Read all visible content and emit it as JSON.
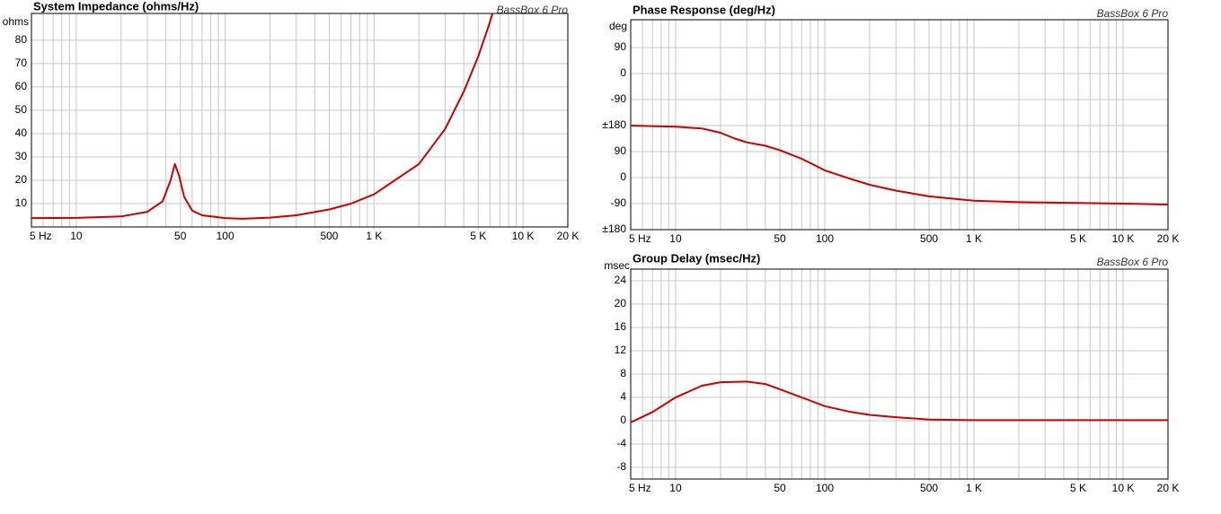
{
  "chart_data": [
    {
      "type": "line",
      "title": "System Impedance (ohms/Hz)",
      "brand": "BassBox 6 Pro",
      "ylabel": "ohms",
      "x": [
        5,
        10,
        20,
        30,
        38,
        43,
        46,
        49,
        53,
        60,
        70,
        100,
        130,
        200,
        300,
        500,
        700,
        1000,
        2000,
        3000,
        4000,
        5000,
        5800,
        6250
      ],
      "series": [
        {
          "name": "Impedance",
          "color": "#cc0000",
          "values": [
            3.8,
            3.9,
            4.5,
            6.5,
            11,
            20,
            27,
            22,
            13,
            7,
            5,
            3.8,
            3.5,
            4,
            5,
            7.5,
            10,
            14,
            27,
            42,
            58,
            73,
            85,
            91.5
          ]
        }
      ],
      "xlim": [
        5,
        20000
      ],
      "log_x": true,
      "ylim": [
        0,
        91.5
      ],
      "yticks": [
        10,
        20,
        30,
        40,
        50,
        60,
        70,
        80
      ],
      "xticks": [
        {
          "value": 5,
          "label": "5 Hz"
        },
        10,
        50,
        100,
        500,
        {
          "value": 1000,
          "label": "1 K"
        },
        {
          "value": 5000,
          "label": "5 K"
        },
        {
          "value": 10000,
          "label": "10 K"
        },
        {
          "value": 20000,
          "label": "20 K"
        }
      ],
      "xgrid": [
        5,
        6,
        7,
        8,
        9,
        10,
        20,
        30,
        40,
        50,
        60,
        70,
        80,
        90,
        100,
        200,
        300,
        400,
        500,
        600,
        700,
        800,
        900,
        1000,
        2000,
        3000,
        4000,
        5000,
        6000,
        7000,
        8000,
        9000,
        10000,
        20000
      ],
      "grid": true
    },
    {
      "type": "line",
      "title": "Phase Response (deg/Hz)",
      "brand": "BassBox 6 Pro",
      "ylabel": "deg",
      "x": [
        5,
        10,
        15,
        20,
        25,
        30,
        40,
        50,
        70,
        100,
        150,
        200,
        300,
        500,
        1000,
        2000,
        5000,
        10000,
        20000
      ],
      "series": [
        {
          "name": "Phase",
          "color": "#cc0000",
          "values": [
            180,
            176,
            170,
            155,
            135,
            122,
            110,
            95,
            65,
            25,
            -5,
            -25,
            -45,
            -65,
            -80,
            -85,
            -88,
            -90,
            -93
          ]
        }
      ],
      "xlim": [
        5,
        20000
      ],
      "log_x": true,
      "ylim": [
        -180,
        546
      ],
      "yticks": [
        {
          "value": -180,
          "label": "±180"
        },
        -90,
        0,
        90,
        {
          "value": 180,
          "label": "±180"
        },
        {
          "value": 270,
          "label": "-90"
        },
        {
          "value": 360,
          "label": "0"
        },
        {
          "value": 450,
          "label": "90"
        }
      ],
      "xticks": [
        {
          "value": 5,
          "label": "5 Hz"
        },
        10,
        50,
        100,
        500,
        {
          "value": 1000,
          "label": "1 K"
        },
        {
          "value": 5000,
          "label": "5 K"
        },
        {
          "value": 10000,
          "label": "10 K"
        },
        {
          "value": 20000,
          "label": "20 K"
        }
      ],
      "xgrid": [
        5,
        6,
        7,
        8,
        9,
        10,
        20,
        30,
        40,
        50,
        60,
        70,
        80,
        90,
        100,
        200,
        300,
        400,
        500,
        600,
        700,
        800,
        900,
        1000,
        2000,
        3000,
        4000,
        5000,
        6000,
        7000,
        8000,
        9000,
        10000,
        20000
      ],
      "grid": true
    },
    {
      "type": "line",
      "title": "Group Delay (msec/Hz)",
      "brand": "BassBox 6 Pro",
      "ylabel": "msec",
      "x": [
        5,
        7,
        10,
        15,
        20,
        30,
        40,
        50,
        70,
        100,
        150,
        200,
        300,
        500,
        1000,
        20000
      ],
      "series": [
        {
          "name": "Group Delay",
          "color": "#cc0000",
          "values": [
            -0.3,
            1.5,
            4,
            6,
            6.6,
            6.7,
            6.3,
            5.4,
            4,
            2.5,
            1.5,
            1.0,
            0.6,
            0.2,
            0.1,
            0.1
          ]
        }
      ],
      "xlim": [
        5,
        20000
      ],
      "log_x": true,
      "ylim": [
        -10,
        26
      ],
      "yticks": [
        -8,
        -4,
        0,
        4,
        8,
        12,
        16,
        20,
        24
      ],
      "xticks": [
        {
          "value": 5,
          "label": "5 Hz"
        },
        10,
        50,
        100,
        500,
        {
          "value": 1000,
          "label": "1 K"
        },
        {
          "value": 5000,
          "label": "5 K"
        },
        {
          "value": 10000,
          "label": "10 K"
        },
        {
          "value": 20000,
          "label": "20 K"
        }
      ],
      "xgrid": [
        5,
        6,
        7,
        8,
        9,
        10,
        20,
        30,
        40,
        50,
        60,
        70,
        80,
        90,
        100,
        200,
        300,
        400,
        500,
        600,
        700,
        800,
        900,
        1000,
        2000,
        3000,
        4000,
        5000,
        6000,
        7000,
        8000,
        9000,
        10000,
        20000
      ],
      "grid": true
    }
  ]
}
